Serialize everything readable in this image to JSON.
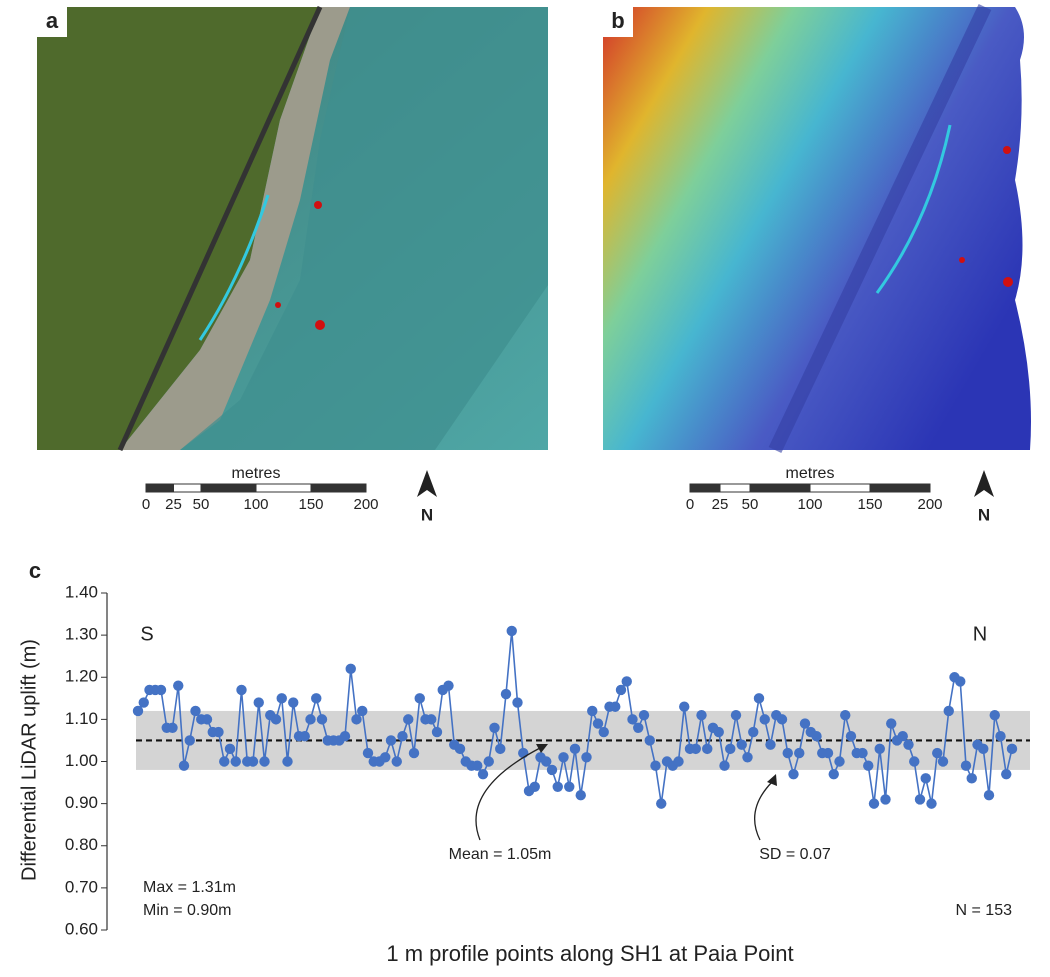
{
  "panels": [
    {
      "label": "a",
      "scale_title": "metres",
      "scale_ticks": [
        0,
        25,
        50,
        100,
        150,
        200
      ],
      "north": "N"
    },
    {
      "label": "b",
      "scale_title": "metres",
      "scale_ticks": [
        0,
        25,
        50,
        100,
        150,
        200
      ],
      "north": "N"
    }
  ],
  "chart_data": {
    "type": "line",
    "panel_label": "c",
    "y_label": "Differential LiDAR uplift (m)",
    "x_label": "1 m profile points along SH1 at Paia Point",
    "ylim": [
      0.6,
      1.4
    ],
    "yticks": [
      {
        "value": 0.6,
        "label": "0.60"
      },
      {
        "value": 0.7,
        "label": "0.70"
      },
      {
        "value": 0.8,
        "label": "0.80"
      },
      {
        "value": 0.9,
        "label": "0.90"
      },
      {
        "value": 1.0,
        "label": "1.00"
      },
      {
        "value": 1.1,
        "label": "1.10"
      },
      {
        "value": 1.2,
        "label": "1.20"
      },
      {
        "value": 1.3,
        "label": "1.30"
      },
      {
        "value": 1.4,
        "label": "1.40"
      }
    ],
    "color": "#4472c4",
    "mean": 1.05,
    "sd": 0.07,
    "annotations": {
      "left": "S",
      "right": "N",
      "mean": "Mean = 1.05m",
      "sd": "SD = 0.07",
      "max": "Max = 1.31m",
      "min": "Min = 0.90m",
      "n": "N = 153"
    },
    "values": [
      1.12,
      1.14,
      1.17,
      1.17,
      1.17,
      1.08,
      1.08,
      1.18,
      0.99,
      1.05,
      1.12,
      1.1,
      1.1,
      1.07,
      1.07,
      1.0,
      1.03,
      1.0,
      1.17,
      1.0,
      1.0,
      1.14,
      1.0,
      1.11,
      1.1,
      1.15,
      1.0,
      1.14,
      1.06,
      1.06,
      1.1,
      1.15,
      1.1,
      1.05,
      1.05,
      1.05,
      1.06,
      1.22,
      1.1,
      1.12,
      1.02,
      1.0,
      1.0,
      1.01,
      1.05,
      1.0,
      1.06,
      1.1,
      1.02,
      1.15,
      1.1,
      1.1,
      1.07,
      1.17,
      1.18,
      1.04,
      1.03,
      1.0,
      0.99,
      0.99,
      0.97,
      1.0,
      1.08,
      1.03,
      1.16,
      1.31,
      1.14,
      1.02,
      0.93,
      0.94,
      1.01,
      1.0,
      0.98,
      0.94,
      1.01,
      0.94,
      1.03,
      0.92,
      1.01,
      1.12,
      1.09,
      1.07,
      1.13,
      1.13,
      1.17,
      1.19,
      1.1,
      1.08,
      1.11,
      1.05,
      0.99,
      0.9,
      1.0,
      0.99,
      1.0,
      1.13,
      1.03,
      1.03,
      1.11,
      1.03,
      1.08,
      1.07,
      0.99,
      1.03,
      1.11,
      1.04,
      1.01,
      1.07,
      1.15,
      1.1,
      1.04,
      1.11,
      1.1,
      1.02,
      0.97,
      1.02,
      1.09,
      1.07,
      1.06,
      1.02,
      1.02,
      0.97,
      1.0,
      1.11,
      1.06,
      1.02,
      1.02,
      0.99,
      0.9,
      1.03,
      0.91,
      1.09,
      1.05,
      1.06,
      1.04,
      1.0,
      0.91,
      0.96,
      0.9,
      1.02,
      1.0,
      1.12,
      1.2,
      1.19,
      0.99,
      0.96,
      1.04,
      1.03,
      0.92,
      1.11,
      1.06,
      0.97,
      1.03
    ]
  }
}
